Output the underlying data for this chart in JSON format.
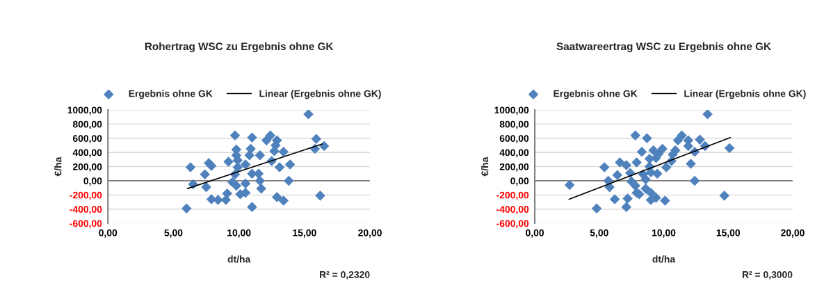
{
  "chart_data": [
    {
      "type": "scatter",
      "title": "Rohertrag WSC zu Ergebnis ohne GK",
      "xlabel": "dt/ha",
      "ylabel": "€/ha",
      "annotations": [
        "R² = 0,2320"
      ],
      "xlim": [
        0,
        20
      ],
      "xticks": [
        {
          "value": 0,
          "label": "0,00"
        },
        {
          "value": 5,
          "label": "5,00"
        },
        {
          "value": 10,
          "label": "10,00"
        },
        {
          "value": 15,
          "label": "15,00"
        },
        {
          "value": 20,
          "label": "20,00"
        }
      ],
      "ylim": [
        -600,
        1000
      ],
      "yticks": [
        {
          "value": -600,
          "label": "-600,00"
        },
        {
          "value": -400,
          "label": "-400,00"
        },
        {
          "value": -200,
          "label": "-200,00"
        },
        {
          "value": 0,
          "label": "0,00"
        },
        {
          "value": 200,
          "label": "200,00"
        },
        {
          "value": 400,
          "label": "400,00"
        },
        {
          "value": 600,
          "label": "600,00"
        },
        {
          "value": 800,
          "label": "800,00"
        },
        {
          "value": 1000,
          "label": "1000,00"
        }
      ],
      "grid": "y",
      "legend": "top",
      "ref_lines": [
        {
          "axis": "y",
          "value": 0,
          "color": "#808080"
        }
      ],
      "series": [
        {
          "name": "Ergebnis ohne GK",
          "marker": "diamond",
          "color": "#4f81bd",
          "x": [
            15.3,
            9.7,
            11.0,
            12.4,
            12.1,
            12.9,
            15.9,
            16.5,
            15.8,
            12.8,
            9.8,
            10.9,
            10.8,
            11.6,
            12.7,
            13.4,
            9.8,
            9.9,
            12.5,
            9.2,
            7.7,
            7.9,
            6.3,
            10.5,
            9.9,
            13.1,
            13.9,
            7.4,
            11.0,
            11.5,
            9.7,
            11.6,
            13.8,
            9.5,
            6.5,
            9.8,
            10.5,
            7.5,
            11.7,
            9.1,
            10.5,
            10.1,
            7.9,
            8.4,
            9.0,
            12.9,
            13.4,
            16.2,
            6.0,
            11.0
          ],
          "values": [
            940,
            640,
            610,
            640,
            570,
            570,
            590,
            490,
            450,
            500,
            440,
            450,
            360,
            360,
            420,
            410,
            360,
            290,
            280,
            270,
            250,
            210,
            190,
            230,
            190,
            190,
            230,
            90,
            100,
            100,
            90,
            0,
            0,
            -20,
            -50,
            -70,
            -40,
            -90,
            -110,
            -180,
            -170,
            -190,
            -260,
            -270,
            -270,
            -230,
            -280,
            -210,
            -390,
            -370
          ]
        },
        {
          "name": "Linear (Ergebnis ohne GK)",
          "type": "line",
          "marker": "none",
          "line_style": "solid",
          "color": "#000000",
          "x": [
            6.07,
            16.36
          ],
          "values": [
            -110,
            520
          ]
        }
      ]
    },
    {
      "type": "scatter",
      "title": "Saatwareertrag WSC zu Ergebnis ohne GK",
      "xlabel": "dt/ha",
      "ylabel": "€/ha",
      "annotations": [
        "R² = 0,3000"
      ],
      "xlim": [
        0,
        20
      ],
      "xticks": [
        {
          "value": 0,
          "label": "0,00"
        },
        {
          "value": 5,
          "label": "5,00"
        },
        {
          "value": 10,
          "label": "10,00"
        },
        {
          "value": 15,
          "label": "15,00"
        },
        {
          "value": 20,
          "label": "20,00"
        }
      ],
      "ylim": [
        -600,
        1000
      ],
      "yticks": [
        {
          "value": -600,
          "label": "-600,00"
        },
        {
          "value": -400,
          "label": "-400,00"
        },
        {
          "value": -200,
          "label": "-200,00"
        },
        {
          "value": 0,
          "label": "0,00"
        },
        {
          "value": 200,
          "label": "200,00"
        },
        {
          "value": 400,
          "label": "400,00"
        },
        {
          "value": 600,
          "label": "600,00"
        },
        {
          "value": 800,
          "label": "800,00"
        },
        {
          "value": 1000,
          "label": "1000,00"
        }
      ],
      "grid": "y",
      "legend": "top",
      "ref_lines": [
        {
          "axis": "y",
          "value": 0,
          "color": "#808080"
        }
      ],
      "series": [
        {
          "name": "Ergebnis ohne GK",
          "marker": "diamond",
          "color": "#4f81bd",
          "x": [
            13.4,
            7.8,
            8.7,
            11.4,
            11.1,
            11.9,
            12.8,
            11.9,
            13.2,
            15.1,
            8.3,
            9.2,
            9.9,
            10.9,
            12.4,
            9.6,
            10.7,
            8.9,
            9.4,
            10.6,
            7.9,
            6.6,
            7.1,
            5.4,
            8.9,
            10.2,
            12.1,
            6.4,
            7.4,
            8.4,
            9.0,
            9.5,
            8.6,
            5.7,
            7.5,
            12.4,
            2.7,
            5.8,
            7.8,
            8.6,
            7.9,
            8.1,
            9.0,
            6.2,
            7.2,
            9.0,
            9.4,
            10.1,
            14.7,
            4.8,
            7.1
          ],
          "values": [
            940,
            640,
            600,
            640,
            570,
            570,
            580,
            490,
            490,
            460,
            410,
            430,
            450,
            430,
            410,
            380,
            370,
            310,
            320,
            280,
            260,
            260,
            220,
            190,
            200,
            190,
            240,
            80,
            110,
            90,
            120,
            100,
            20,
            0,
            -10,
            0,
            -60,
            -90,
            -70,
            -110,
            -170,
            -190,
            -170,
            -260,
            -250,
            -270,
            -240,
            -280,
            -210,
            -390,
            -370
          ]
        },
        {
          "name": "Linear (Ergebnis ohne GK)",
          "type": "line",
          "marker": "none",
          "line_style": "solid",
          "color": "#000000",
          "x": [
            2.66,
            15.17
          ],
          "values": [
            -260,
            610
          ]
        }
      ]
    }
  ]
}
